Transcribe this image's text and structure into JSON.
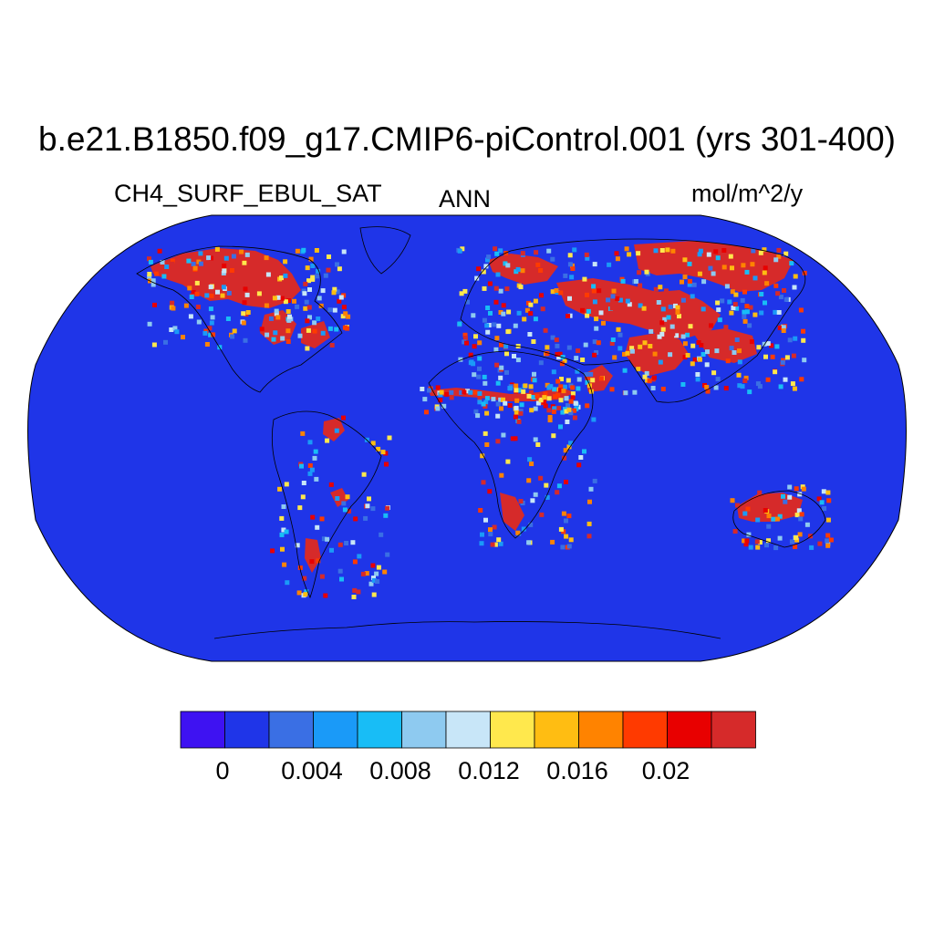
{
  "title": "b.e21.B1850.f09_g17.CMIP6-piControl.001 (yrs 301-400)",
  "variable": "CH4_SURF_EBUL_SAT",
  "season": "ANN",
  "units": "mol/m^2/y",
  "projection": "robinson",
  "colors": {
    "ocean": "#1f35e8",
    "high": "#d62a2a",
    "coastline": "#000000"
  },
  "colorbar": {
    "colors": [
      "#3e12f2",
      "#1f35e8",
      "#3a6fe4",
      "#1a9af8",
      "#18bdf6",
      "#8ecaf0",
      "#c8e6f8",
      "#ffe84d",
      "#ffbd12",
      "#ff8300",
      "#ff3a00",
      "#e80000",
      "#d62a2a"
    ],
    "tick_labels": [
      "0",
      "0.004",
      "0.008",
      "0.012",
      "0.016",
      "0.02"
    ]
  }
}
